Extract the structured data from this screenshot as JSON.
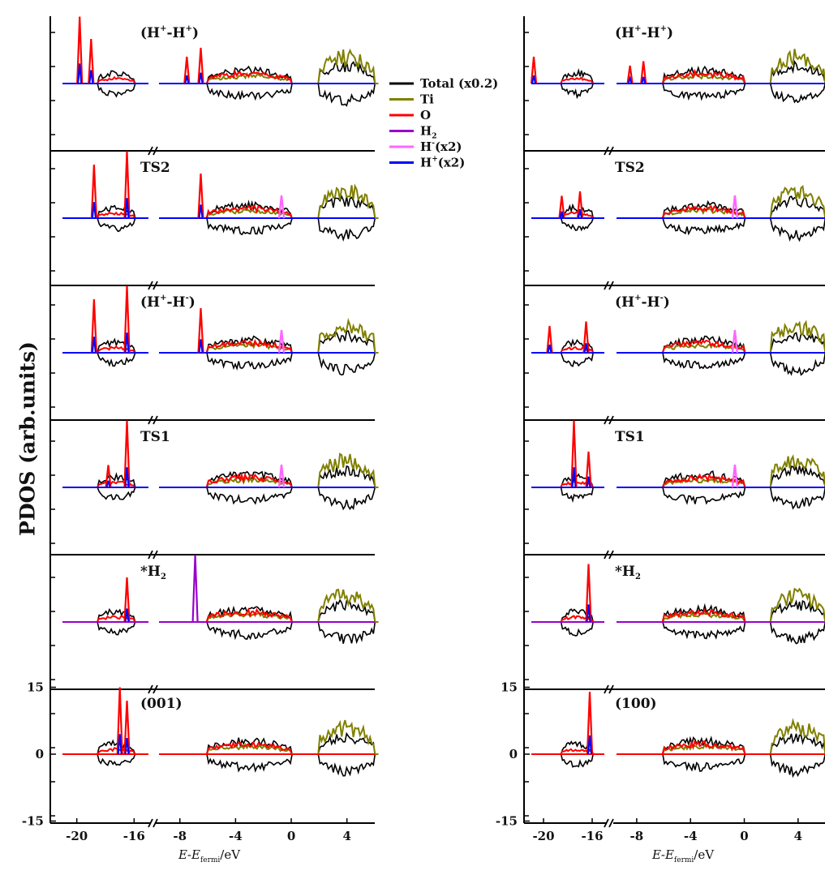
{
  "chart_data": {
    "type": "line",
    "ylabel": "PDOS (arb.units)",
    "xlabel": {
      "italic": "E",
      "dash": "-",
      "italic2": "E",
      "sub": "fermi",
      "unit": "/eV"
    },
    "x_ticks": [
      -20,
      -16,
      -8,
      -4,
      0,
      4
    ],
    "x_tick_labels": [
      "-20",
      "-16",
      "-8",
      "-4",
      "0",
      "4"
    ],
    "xlim_left": [
      -21,
      -15
    ],
    "xlim_right": [
      -9.5,
      6
    ],
    "y_ticks": [
      15,
      0,
      -15
    ],
    "y_tick_labels": [
      "15",
      "0",
      "-15"
    ],
    "ylim_panel": [
      -15,
      15
    ],
    "legend": {
      "placement": "top-center",
      "entries": [
        {
          "label": "Total (x0.2)",
          "main": "Total (x0.2)",
          "sup": "",
          "rest": "",
          "color": "#000000"
        },
        {
          "label": "Ti",
          "main": "Ti",
          "sup": "",
          "rest": "",
          "color": "#808000"
        },
        {
          "label": "O",
          "main": "O",
          "sup": "",
          "rest": "",
          "color": "#ff0000"
        },
        {
          "label": "H2",
          "main": "H",
          "sup": "",
          "sub": "2",
          "rest": "",
          "color": "#9900cc"
        },
        {
          "label": "H-(x2)",
          "main": "H",
          "sup": "-",
          "rest": "(x2)",
          "color": "#ff66ff"
        },
        {
          "label": "H+(x2)",
          "main": "H",
          "sup": "+",
          "rest": "(x2)",
          "color": "#0000ff"
        }
      ]
    },
    "columns": [
      {
        "name": "left",
        "panels": [
          {
            "label_main": "(H",
            "label_sup1": "+",
            "label_mid": "-H",
            "label_sup2": "+",
            "label_end": ")",
            "state": "HpHp"
          },
          {
            "label_main": "TS2",
            "state": "TS2"
          },
          {
            "label_main": "(H",
            "label_sup1": "+",
            "label_mid": "-H",
            "label_sup2": "-",
            "label_end": ")",
            "state": "HpHm"
          },
          {
            "label_main": "TS1",
            "state": "TS1"
          },
          {
            "label_main": "*H",
            "label_sub": "2",
            "state": "H2"
          },
          {
            "label_main": "(001)",
            "state": "clean"
          }
        ]
      },
      {
        "name": "right",
        "panels": [
          {
            "label_main": "(H",
            "label_sup1": "+",
            "label_mid": "-H",
            "label_sup2": "+",
            "label_end": ")",
            "state": "HpHp"
          },
          {
            "label_main": "TS2",
            "state": "TS2"
          },
          {
            "label_main": "(H",
            "label_sup1": "+",
            "label_mid": "-H",
            "label_sup2": "-",
            "label_end": ")",
            "state": "HpHm"
          },
          {
            "label_main": "TS1",
            "state": "TS1"
          },
          {
            "label_main": "*H",
            "label_sub": "2",
            "state": "H2"
          },
          {
            "label_main": "(100)",
            "state": "clean"
          }
        ]
      }
    ],
    "bands": {
      "O_2s": [
        -18.5,
        -16.0
      ],
      "valence": [
        -6.0,
        0.0
      ],
      "conduction": [
        2.0,
        6.0
      ]
    },
    "adsorbate_peaks": {
      "left": {
        "HpHp": [
          {
            "x": -19.8,
            "h": 15,
            "s": "O"
          },
          {
            "x": -19.0,
            "h": 10,
            "s": "O"
          },
          {
            "x": -7.5,
            "h": 6,
            "s": "O"
          },
          {
            "x": -6.5,
            "h": 8,
            "s": "O"
          }
        ],
        "TS2": [
          {
            "x": -18.8,
            "h": 12,
            "s": "O"
          },
          {
            "x": -16.5,
            "h": 15,
            "s": "O"
          },
          {
            "x": -6.5,
            "h": 10,
            "s": "O"
          }
        ],
        "HpHm": [
          {
            "x": -18.8,
            "h": 12,
            "s": "O"
          },
          {
            "x": -16.5,
            "h": 15,
            "s": "O"
          },
          {
            "x": -6.5,
            "h": 10,
            "s": "O"
          }
        ],
        "TS1": [
          {
            "x": -17.8,
            "h": 5,
            "s": "O"
          },
          {
            "x": -16.5,
            "h": 15,
            "s": "O"
          }
        ],
        "H2": [
          {
            "x": -16.5,
            "h": 10,
            "s": "O"
          },
          {
            "x": -6.9,
            "h": 15,
            "s": "H2"
          }
        ],
        "clean": [
          {
            "x": -17.0,
            "h": 15,
            "s": "O"
          },
          {
            "x": -16.5,
            "h": 12,
            "s": "O"
          }
        ]
      },
      "right": {
        "HpHp": [
          {
            "x": -20.8,
            "h": 6,
            "s": "O"
          },
          {
            "x": -8.5,
            "h": 4,
            "s": "O"
          },
          {
            "x": -7.5,
            "h": 5,
            "s": "O"
          }
        ],
        "TS2": [
          {
            "x": -18.5,
            "h": 5,
            "s": "O"
          },
          {
            "x": -17.0,
            "h": 6,
            "s": "O"
          }
        ],
        "HpHm": [
          {
            "x": -19.5,
            "h": 6,
            "s": "O"
          },
          {
            "x": -16.5,
            "h": 7,
            "s": "O"
          }
        ],
        "TS1": [
          {
            "x": -17.5,
            "h": 15,
            "s": "O"
          },
          {
            "x": -16.3,
            "h": 8,
            "s": "O"
          }
        ],
        "H2": [
          {
            "x": -16.3,
            "h": 13,
            "s": "O"
          }
        ],
        "clean": [
          {
            "x": -16.2,
            "h": 14,
            "s": "O"
          }
        ]
      }
    }
  }
}
